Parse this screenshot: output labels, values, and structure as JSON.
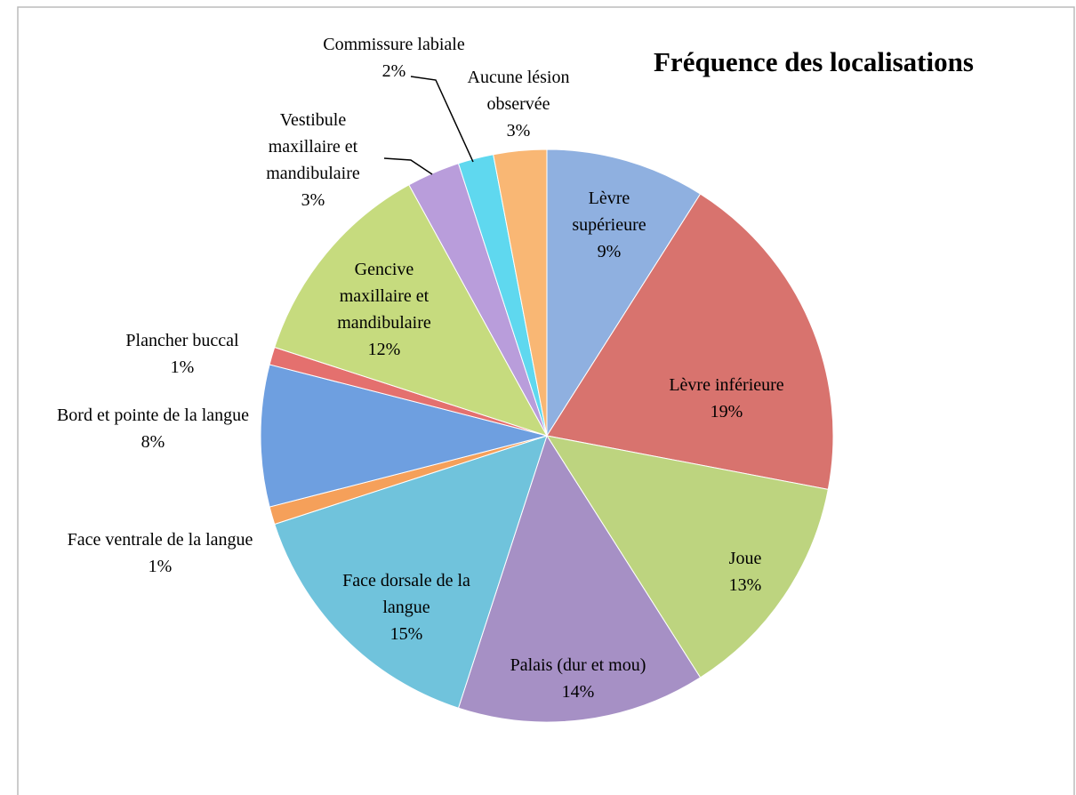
{
  "chart_data": {
    "type": "pie",
    "title": "Fréquence des localisations",
    "categories": [
      "Lèvre supérieure",
      "Lèvre inférieure",
      "Joue",
      "Palais (dur et mou)",
      "Face dorsale de la langue",
      "Face ventrale de la langue",
      "Bord et pointe de la langue",
      "Plancher buccal",
      "Gencive maxillaire et mandibulaire",
      "Vestibule maxillaire et mandibulaire",
      "Commissure labiale",
      "Aucune lésion observée"
    ],
    "values": [
      9,
      19,
      13,
      14,
      15,
      1,
      8,
      1,
      12,
      3,
      2,
      3
    ],
    "value_labels": [
      "9%",
      "19%",
      "13%",
      "14%",
      "15%",
      "1%",
      "8%",
      "1%",
      "12%",
      "3%",
      "2%",
      "3%"
    ],
    "colors": [
      "#8fb0e0",
      "#d8736e",
      "#bdd47f",
      "#a690c5",
      "#70c3dc",
      "#f5a05a",
      "#6e9fe0",
      "#e4706e",
      "#c6db7e",
      "#b99ddb",
      "#5fd8ef",
      "#f9b774"
    ]
  }
}
